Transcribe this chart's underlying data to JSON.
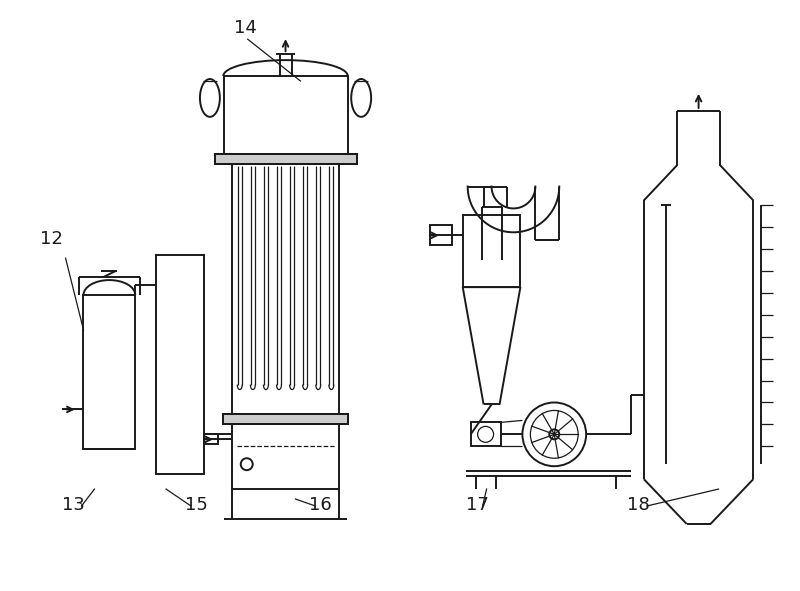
{
  "bg_color": "#ffffff",
  "line_color": "#1a1a1a",
  "lw": 1.4,
  "lw_thin": 0.9,
  "label_fontsize": 13
}
